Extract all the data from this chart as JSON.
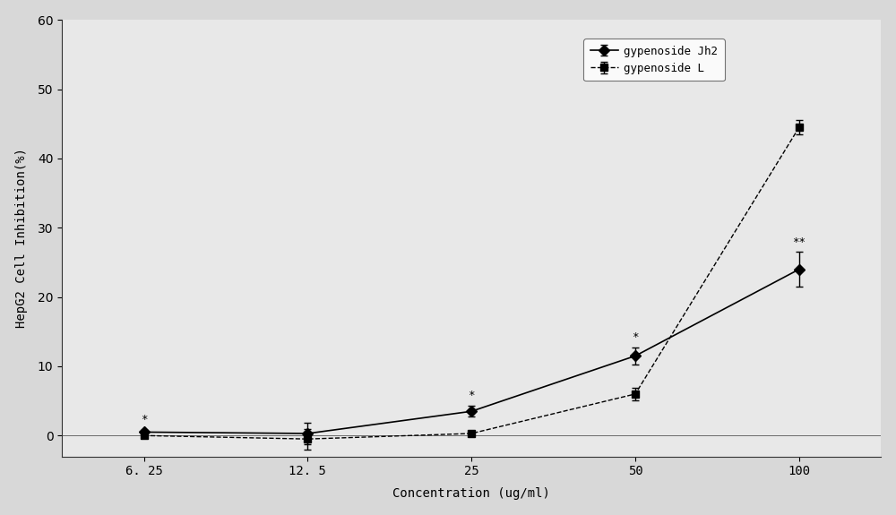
{
  "x_positions": [
    0,
    1,
    2,
    3,
    4
  ],
  "x_labels": [
    "6. 25",
    "12. 5",
    "25",
    "50",
    "100"
  ],
  "jh2_y": [
    0.5,
    0.3,
    3.5,
    11.5,
    24.0
  ],
  "jh2_yerr": [
    0.3,
    1.5,
    0.8,
    1.2,
    2.5
  ],
  "L_y": [
    0.0,
    -0.5,
    0.3,
    6.0,
    44.5
  ],
  "L_yerr": [
    0.2,
    1.5,
    0.3,
    0.9,
    1.0
  ],
  "jh2_annotations": [
    "*",
    null,
    "*",
    "*",
    "**"
  ],
  "xlabel": "Concentration (ug/ml)",
  "ylabel": "HepG2 Cell Inhibition(%)",
  "ylim": [
    -3,
    60
  ],
  "yticks": [
    0,
    10,
    20,
    30,
    40,
    50,
    60
  ],
  "legend_labels": [
    "gypenoside Jh2",
    "gypenoside L"
  ],
  "line_color": "#000000",
  "bg_color": "#d8d8d8",
  "plot_bg": "#e8e8e8",
  "label_fontsize": 10,
  "tick_fontsize": 10
}
